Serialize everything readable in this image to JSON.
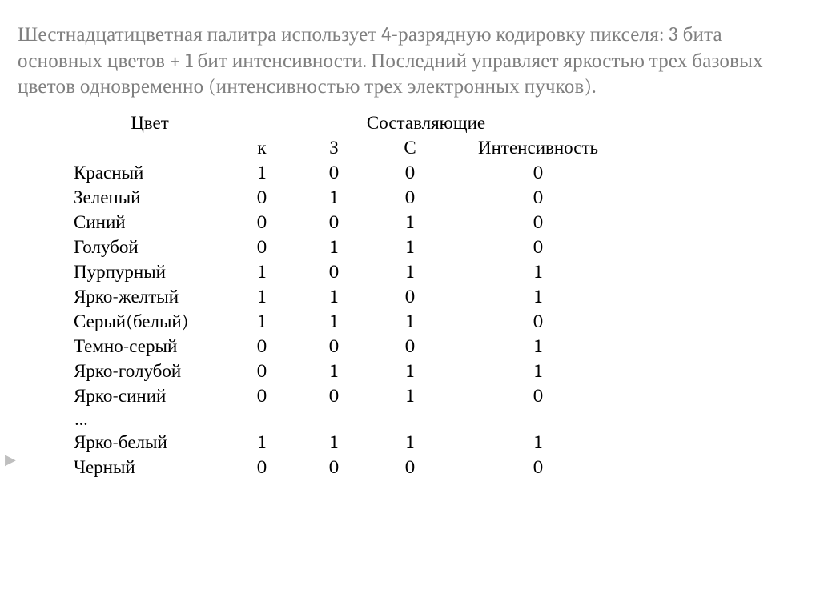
{
  "intro": "Шестнадцатицветная палитра использует 4-разрядную кодировку пикселя: 3 бита основных цветов + 1 бит интенсивности. Последний управляет яркостью трех базовых цветов одновременно (интенсивностью трех электронных пучков).",
  "table": {
    "header_color": "Цвет",
    "header_components": "Составляющие",
    "sub_k": "к",
    "sub_z": "З",
    "sub_s": "С",
    "sub_i": "Интенсивность",
    "rows": [
      {
        "name": "Красный",
        "k": "1",
        "z": "0",
        "s": "0",
        "i": "0"
      },
      {
        "name": "Зеленый",
        "k": "0",
        "z": "1",
        "s": "0",
        "i": "0"
      },
      {
        "name": "Синий",
        "k": "0",
        "z": "0",
        "s": "1",
        "i": "0"
      },
      {
        "name": "Голубой",
        "k": "0",
        "z": "1",
        "s": "1",
        "i": "0"
      },
      {
        "name": "Пурпурный",
        "k": "1",
        "z": "0",
        "s": "1",
        "i": "1"
      },
      {
        "name": "Ярко-желтый",
        "k": "1",
        "z": "1",
        "s": "0",
        "i": "1"
      },
      {
        "name": "Серый(белый)",
        "k": "1",
        "z": "1",
        "s": "1",
        "i": "0"
      },
      {
        "name": "Темно-серый",
        "k": "0",
        "z": "0",
        "s": "0",
        "i": "1"
      },
      {
        "name": "Ярко-голубой",
        "k": "0",
        "z": "1",
        "s": "1",
        "i": "1"
      },
      {
        "name": "Ярко-синий",
        "k": "0",
        "z": "0",
        "s": "1",
        "i": "0"
      }
    ],
    "ellipsis": "…",
    "tail": [
      {
        "name": "Ярко-белый",
        "k": "1",
        "z": "1",
        "s": "1",
        "i": "1"
      },
      {
        "name": "Черный",
        "k": "0",
        "z": "0",
        "s": "0",
        "i": "0"
      }
    ]
  },
  "colors": {
    "intro_text": "#7f7f7f",
    "body_text": "#000000",
    "background": "#ffffff",
    "bullet": "#bfbfbf"
  },
  "fontsizes": {
    "intro": 25,
    "table": 23
  }
}
